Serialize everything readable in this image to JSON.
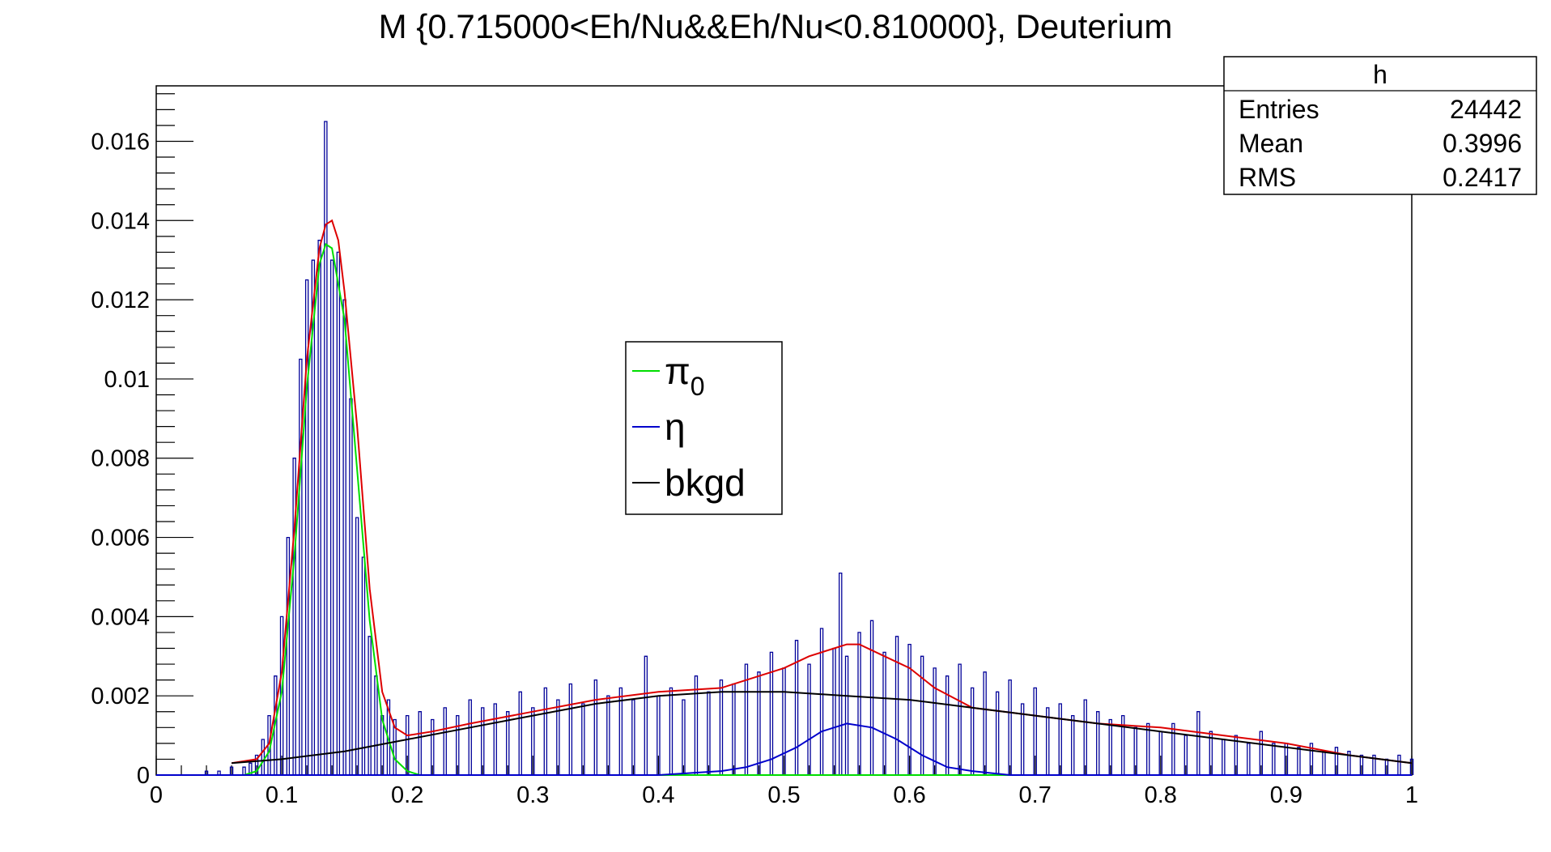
{
  "chart_data": {
    "type": "histogram",
    "title": "M {0.715000<Eh/Nu&&Eh/Nu<0.810000}, Deuterium",
    "xlabel": "",
    "ylabel": "",
    "xlim": [
      0,
      1
    ],
    "ylim": [
      0,
      0.0174
    ],
    "x_ticks": [
      "0",
      "0.1",
      "0.2",
      "0.3",
      "0.4",
      "0.5",
      "0.6",
      "0.7",
      "0.8",
      "0.9",
      "1"
    ],
    "y_ticks": [
      "0",
      "0.002",
      "0.004",
      "0.006",
      "0.008",
      "0.01",
      "0.012",
      "0.014",
      "0.016"
    ],
    "grid": false,
    "stats_box": {
      "name": "h",
      "rows": [
        {
          "label": "Entries",
          "value": "24442"
        },
        {
          "label": "Mean",
          "value": "0.3996"
        },
        {
          "label": "RMS",
          "value": "0.2417"
        }
      ]
    },
    "legend": {
      "placement": "center",
      "entries": [
        {
          "label": "π",
          "sub": "0",
          "color": "#00dd00"
        },
        {
          "label": "η",
          "sub": "",
          "color": "#0000cc"
        },
        {
          "label": "bkgd",
          "sub": "",
          "color": "#000000"
        }
      ]
    },
    "series": [
      {
        "kind": "histogram",
        "color": "#000099",
        "bin_width": 0.002,
        "x": [
          0.04,
          0.05,
          0.06,
          0.07,
          0.075,
          0.08,
          0.085,
          0.09,
          0.095,
          0.1,
          0.105,
          0.11,
          0.115,
          0.12,
          0.125,
          0.13,
          0.135,
          0.14,
          0.145,
          0.15,
          0.155,
          0.16,
          0.165,
          0.17,
          0.175,
          0.18,
          0.185,
          0.19,
          0.2,
          0.21,
          0.22,
          0.23,
          0.24,
          0.25,
          0.26,
          0.27,
          0.28,
          0.29,
          0.3,
          0.31,
          0.32,
          0.33,
          0.34,
          0.35,
          0.36,
          0.37,
          0.38,
          0.39,
          0.4,
          0.41,
          0.42,
          0.43,
          0.44,
          0.45,
          0.46,
          0.47,
          0.48,
          0.49,
          0.5,
          0.51,
          0.52,
          0.53,
          0.54,
          0.545,
          0.55,
          0.56,
          0.57,
          0.58,
          0.59,
          0.6,
          0.61,
          0.62,
          0.63,
          0.64,
          0.65,
          0.66,
          0.67,
          0.68,
          0.69,
          0.7,
          0.71,
          0.72,
          0.73,
          0.74,
          0.75,
          0.76,
          0.77,
          0.78,
          0.79,
          0.8,
          0.81,
          0.82,
          0.83,
          0.84,
          0.85,
          0.86,
          0.87,
          0.88,
          0.89,
          0.9,
          0.91,
          0.92,
          0.93,
          0.94,
          0.95,
          0.96,
          0.97,
          0.98,
          0.99,
          1.0
        ],
        "y": [
          0.0001,
          0.0001,
          0.0002,
          0.0002,
          0.0003,
          0.0005,
          0.0009,
          0.0015,
          0.0025,
          0.004,
          0.006,
          0.008,
          0.0105,
          0.0125,
          0.013,
          0.0135,
          0.0165,
          0.013,
          0.0132,
          0.012,
          0.0095,
          0.0065,
          0.0055,
          0.0035,
          0.0025,
          0.0015,
          0.0019,
          0.0014,
          0.0015,
          0.0016,
          0.0014,
          0.0017,
          0.0015,
          0.0019,
          0.0017,
          0.0018,
          0.0016,
          0.0021,
          0.0017,
          0.0022,
          0.0019,
          0.0023,
          0.0018,
          0.0024,
          0.002,
          0.0022,
          0.0019,
          0.003,
          0.002,
          0.0022,
          0.0019,
          0.0025,
          0.0021,
          0.0024,
          0.0023,
          0.0028,
          0.0026,
          0.0031,
          0.0027,
          0.0034,
          0.0028,
          0.0037,
          0.0032,
          0.0051,
          0.003,
          0.0036,
          0.0039,
          0.0031,
          0.0035,
          0.0033,
          0.003,
          0.0027,
          0.0025,
          0.0028,
          0.0022,
          0.0026,
          0.0021,
          0.0024,
          0.0018,
          0.0022,
          0.0017,
          0.0018,
          0.0015,
          0.0019,
          0.0016,
          0.0014,
          0.0015,
          0.0012,
          0.0013,
          0.0011,
          0.0013,
          0.001,
          0.0016,
          0.0011,
          0.0009,
          0.001,
          0.0008,
          0.0011,
          0.0008,
          0.0008,
          0.0007,
          0.0008,
          0.0006,
          0.0007,
          0.0006,
          0.0005,
          0.0005,
          0.0004,
          0.0005,
          0.0004
        ]
      },
      {
        "kind": "curve",
        "color": "#dd0000",
        "x": [
          0.06,
          0.08,
          0.09,
          0.1,
          0.11,
          0.12,
          0.13,
          0.135,
          0.14,
          0.145,
          0.15,
          0.16,
          0.17,
          0.18,
          0.19,
          0.2,
          0.22,
          0.25,
          0.3,
          0.35,
          0.4,
          0.45,
          0.5,
          0.52,
          0.54,
          0.55,
          0.56,
          0.58,
          0.6,
          0.62,
          0.65,
          0.7,
          0.75,
          0.8,
          0.85,
          0.9,
          0.95,
          1.0
        ],
        "y": [
          0.0003,
          0.0004,
          0.0008,
          0.0026,
          0.0062,
          0.0105,
          0.0133,
          0.0139,
          0.014,
          0.0135,
          0.0122,
          0.0088,
          0.0047,
          0.0021,
          0.0012,
          0.001,
          0.0011,
          0.0013,
          0.0016,
          0.0019,
          0.0021,
          0.0022,
          0.0027,
          0.003,
          0.0032,
          0.0033,
          0.0033,
          0.003,
          0.0027,
          0.0022,
          0.0017,
          0.0015,
          0.0013,
          0.0012,
          0.001,
          0.0008,
          0.0005,
          0.0003
        ]
      },
      {
        "kind": "curve",
        "color": "#00dd00",
        "x": [
          0.07,
          0.08,
          0.09,
          0.1,
          0.11,
          0.12,
          0.13,
          0.135,
          0.14,
          0.15,
          0.16,
          0.17,
          0.18,
          0.19,
          0.2,
          0.21,
          0.3,
          0.5,
          0.7,
          1.0
        ],
        "y": [
          0.0,
          0.0001,
          0.0006,
          0.0021,
          0.0055,
          0.0098,
          0.0129,
          0.0134,
          0.0133,
          0.0115,
          0.0077,
          0.0039,
          0.0014,
          0.0004,
          0.0001,
          0.0,
          0.0,
          0.0,
          0.0,
          0.0
        ]
      },
      {
        "kind": "curve",
        "color": "#0000cc",
        "x": [
          0.0,
          0.4,
          0.45,
          0.47,
          0.49,
          0.51,
          0.53,
          0.55,
          0.57,
          0.59,
          0.61,
          0.63,
          0.65,
          0.68,
          0.7,
          1.0
        ],
        "y": [
          0.0,
          0.0,
          0.0001,
          0.0002,
          0.0004,
          0.0007,
          0.0011,
          0.0013,
          0.0012,
          0.0009,
          0.0005,
          0.0002,
          0.0001,
          0.0,
          0.0,
          0.0
        ]
      },
      {
        "kind": "curve",
        "color": "#000000",
        "x": [
          0.06,
          0.1,
          0.15,
          0.2,
          0.25,
          0.3,
          0.35,
          0.4,
          0.45,
          0.5,
          0.55,
          0.6,
          0.65,
          0.7,
          0.75,
          0.8,
          0.85,
          0.9,
          0.95,
          1.0
        ],
        "y": [
          0.0003,
          0.0004,
          0.0006,
          0.0009,
          0.0012,
          0.0015,
          0.0018,
          0.002,
          0.0021,
          0.0021,
          0.002,
          0.0019,
          0.0017,
          0.0015,
          0.0013,
          0.0011,
          0.0009,
          0.0007,
          0.0005,
          0.0003
        ]
      }
    ]
  }
}
